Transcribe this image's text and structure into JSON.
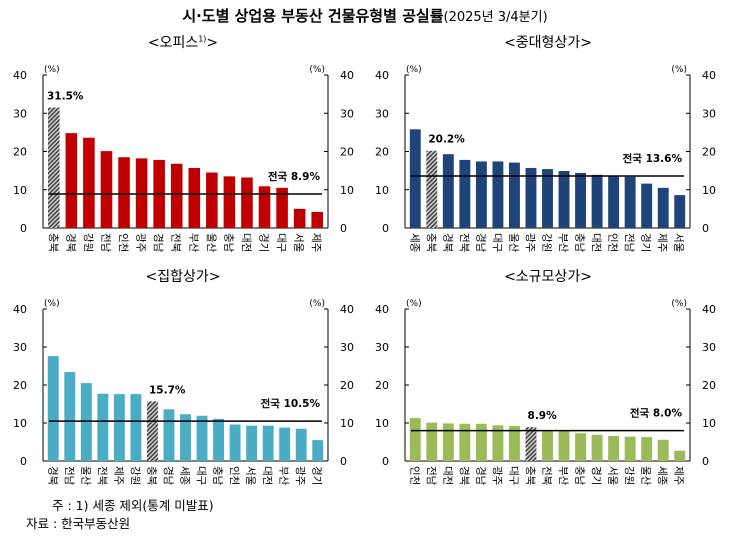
{
  "title": {
    "main": "시·도별 상업용 부동산 건물유형별 공실률",
    "sub": "(2025년 3/4분기)"
  },
  "notes": {
    "note": "주 : 1) 세종 제외(통계 미발표)",
    "source": "자료 : 한국부동산원"
  },
  "colors": {
    "office": "#C00000",
    "large": "#1F4479",
    "aggregate": "#4BACC6",
    "small": "#9BBB59",
    "highlight": "#808080",
    "average_line": "#000000"
  },
  "chart_data": [
    {
      "type": "bar",
      "title": "<오피스",
      "title_sup": "1)",
      "title_end": ">",
      "ylabel_left": "(%)",
      "ylabel_right": "(%)",
      "ylim": [
        0,
        40
      ],
      "yticks": [
        0,
        10,
        20,
        30,
        40
      ],
      "categories": [
        "충북",
        "경북",
        "강원",
        "전남",
        "인천",
        "광주",
        "경남",
        "전북",
        "부산",
        "울산",
        "충남",
        "대전",
        "경기",
        "대구",
        "서울",
        "제주"
      ],
      "values": [
        31.5,
        24.8,
        23.6,
        20.1,
        18.5,
        18.2,
        17.8,
        16.8,
        15.7,
        14.5,
        13.5,
        13.2,
        10.9,
        10.5,
        5.0,
        4.2
      ],
      "highlight_index": 0,
      "highlight_label": "31.5%",
      "average": 8.9,
      "average_label": "전국 8.9%",
      "color_key": "office"
    },
    {
      "type": "bar",
      "title": "<중대형상가>",
      "ylabel_left": "(%)",
      "ylabel_right": "(%)",
      "ylim": [
        0,
        40
      ],
      "yticks": [
        0,
        10,
        20,
        30,
        40
      ],
      "categories": [
        "세종",
        "충북",
        "경북",
        "전북",
        "경남",
        "대구",
        "울산",
        "광주",
        "강원",
        "부산",
        "충남",
        "대전",
        "인천",
        "전남",
        "경기",
        "제주",
        "서울"
      ],
      "values": [
        25.8,
        20.2,
        19.3,
        17.8,
        17.4,
        17.4,
        17.1,
        15.7,
        15.4,
        14.9,
        14.4,
        13.9,
        13.5,
        13.4,
        11.6,
        10.5,
        8.6
      ],
      "highlight_index": 1,
      "highlight_label": "20.2%",
      "average": 13.6,
      "average_label": "전국 13.6%",
      "color_key": "large"
    },
    {
      "type": "bar",
      "title": "<집합상가>",
      "ylabel_left": "(%)",
      "ylabel_right": "(%)",
      "ylim": [
        0,
        40
      ],
      "yticks": [
        0,
        10,
        20,
        30,
        40
      ],
      "categories": [
        "경북",
        "전남",
        "울산",
        "전북",
        "제주",
        "강원",
        "충북",
        "경남",
        "세종",
        "대구",
        "충남",
        "인천",
        "서울",
        "대전",
        "부산",
        "광주",
        "경기"
      ],
      "values": [
        27.6,
        23.4,
        20.5,
        17.7,
        17.6,
        17.6,
        15.7,
        13.6,
        12.3,
        11.9,
        11.1,
        9.6,
        9.3,
        9.3,
        8.8,
        8.5,
        5.5
      ],
      "highlight_index": 6,
      "highlight_label": "15.7%",
      "average": 10.5,
      "average_label": "전국 10.5%",
      "color_key": "aggregate"
    },
    {
      "type": "bar",
      "title": "<소규모상가>",
      "ylabel_left": "(%)",
      "ylabel_right": "(%)",
      "ylim": [
        0,
        40
      ],
      "yticks": [
        0,
        10,
        20,
        30,
        40
      ],
      "categories": [
        "인천",
        "전남",
        "대전",
        "경북",
        "경남",
        "광주",
        "대구",
        "충북",
        "전북",
        "부산",
        "충남",
        "경기",
        "서울",
        "강원",
        "울산",
        "세종",
        "제주"
      ],
      "values": [
        11.3,
        10.1,
        9.9,
        9.8,
        9.8,
        9.4,
        9.2,
        8.9,
        8.0,
        8.0,
        7.3,
        6.9,
        6.6,
        6.4,
        6.3,
        5.6,
        2.7
      ],
      "highlight_index": 7,
      "highlight_label": "8.9%",
      "average": 8.0,
      "average_label": "전국 8.0%",
      "color_key": "small"
    }
  ]
}
